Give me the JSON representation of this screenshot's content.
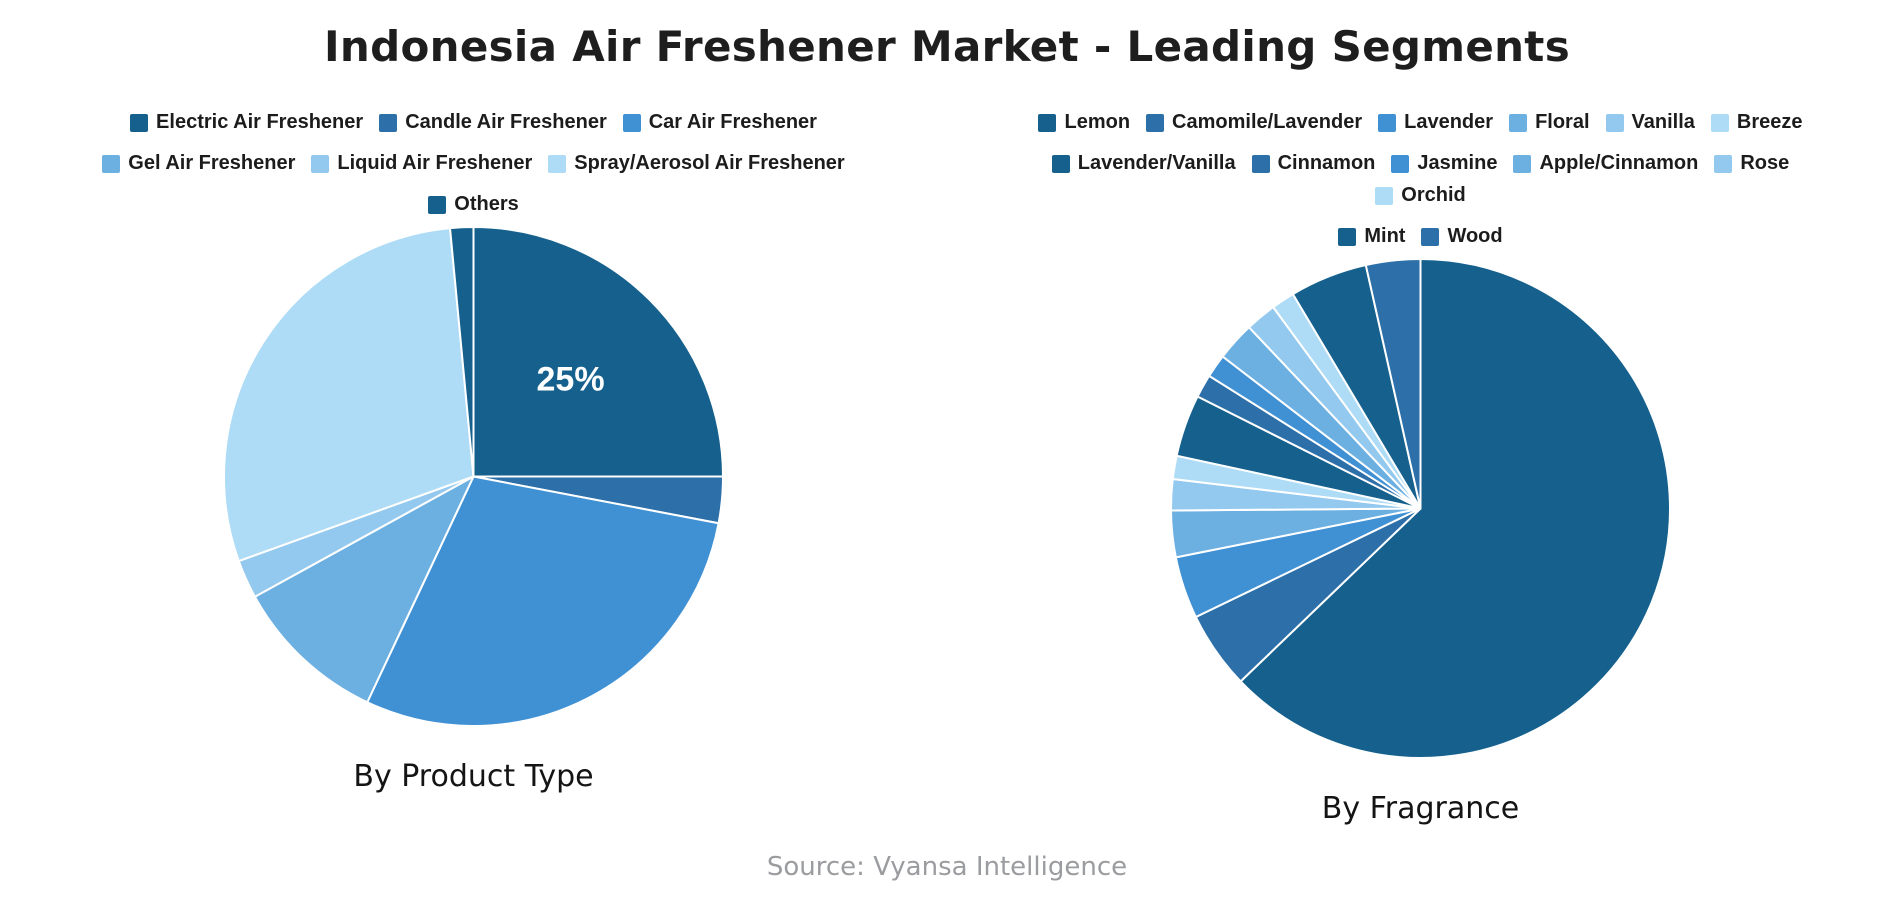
{
  "title": "Indonesia Air Freshener Market - Leading Segments",
  "source": "Source: Vyansa Intelligence",
  "palette": [
    "#15608d",
    "#2d6fa8",
    "#4090d4",
    "#6cb0e2",
    "#93c9ee",
    "#aedcf6"
  ],
  "chart_data": [
    {
      "type": "pie",
      "subtitle": "By Product Type",
      "legend_position": "top",
      "direction": "clockwise",
      "start_angle": "12-oclock",
      "unit": "%",
      "categories": [
        "Electric Air Freshener",
        "Candle Air Freshener",
        "Car Air Freshener",
        "Gel Air Freshener",
        "Liquid Air Freshener",
        "Spray/Aerosol Air Freshener",
        "Others"
      ],
      "values": [
        25,
        3,
        29,
        10,
        2.5,
        29,
        1.5
      ],
      "legend_rows": [
        3,
        3,
        1
      ],
      "data_labels": [
        {
          "slice_index": 0,
          "text": "25%"
        }
      ]
    },
    {
      "type": "pie",
      "subtitle": "By Fragrance",
      "legend_position": "top",
      "direction": "clockwise",
      "start_angle": "12-oclock",
      "unit": "%",
      "categories": [
        "Lemon",
        "Camomile/Lavender",
        "Lavender",
        "Floral",
        "Vanilla",
        "Breeze",
        "Lavender/Vanilla",
        "Cinnamon",
        "Jasmine",
        "Apple/Cinnamon",
        "Rose",
        "Orchid",
        "Mint",
        "Wood"
      ],
      "values": [
        62.5,
        5,
        4,
        3,
        2,
        1.5,
        4,
        1.5,
        1.5,
        2.5,
        2,
        1.5,
        5,
        3.5
      ],
      "legend_rows": [
        6,
        6,
        2
      ],
      "data_labels": []
    }
  ]
}
